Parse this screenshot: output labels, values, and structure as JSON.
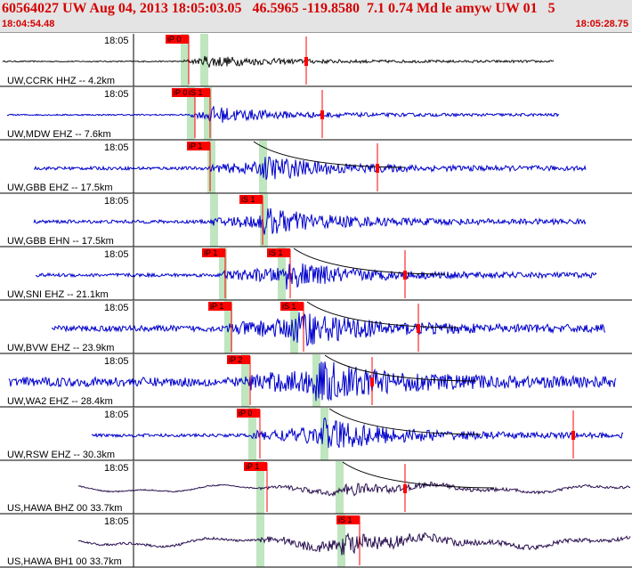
{
  "header": {
    "title": "60564027 UW Aug 04, 2013 18:05:03.05   46.5965 -119.8580  7.1 0.74 Md le amyw UW 01   5",
    "start_time": "18:04:54.48",
    "end_time": "18:05:28.75"
  },
  "time_tick_label": "18:05",
  "colors": {
    "header_text": "#d40000",
    "pick_flag": "#ff0000",
    "pick_window": "#bfe6bf",
    "trace_blue": "#0000cc",
    "trace_black": "#111111",
    "trace_purple": "#2a1050",
    "coda_curve": "#000000",
    "grid_line": "#000000"
  },
  "traces": [
    {
      "label": "UW,CCRK HHZ -- 4.2km",
      "color": "black",
      "amp": 0.5,
      "noise": 0.05,
      "xs": 3,
      "xe": 622,
      "picks": [
        {
          "text": "iP 0",
          "x": 212
        }
      ],
      "green": [
        207,
        229
      ],
      "coda": null,
      "tmark": 344
    },
    {
      "label": "UW,MDW EHZ -- 7.6km",
      "color": "blue",
      "amp": 0.6,
      "noise": 0.05,
      "xs": 8,
      "xe": 628,
      "picks": [
        {
          "text": "iP 0",
          "x": 219
        },
        {
          "text": "iS 1",
          "x": 236
        }
      ],
      "green": [
        214,
        233
      ],
      "coda": null,
      "tmark": 362
    },
    {
      "label": "UW,GBB EHZ -- 17.5km",
      "color": "blue",
      "amp": 0.7,
      "noise": 0.1,
      "xs": 38,
      "xe": 658,
      "picks": [
        {
          "text": "iP 1",
          "x": 236
        }
      ],
      "green": [
        237,
        295
      ],
      "coda": 285,
      "tmark": 424
    },
    {
      "label": "UW,GBB EHN -- 17.5km",
      "color": "blue",
      "amp": 0.75,
      "noise": 0.1,
      "xs": 38,
      "xe": 658,
      "picks": [
        {
          "text": "iS 1",
          "x": 295
        }
      ],
      "green": [
        240,
        296
      ],
      "coda": null,
      "tmark": null
    },
    {
      "label": "UW,SNI EHZ -- 21.1km",
      "color": "blue",
      "amp": 0.75,
      "noise": 0.1,
      "xs": 40,
      "xe": 670,
      "picks": [
        {
          "text": "iP 1",
          "x": 253
        },
        {
          "text": "iS 1",
          "x": 326
        }
      ],
      "green": [
        250,
        316
      ],
      "coda": 330,
      "tmark": 455
    },
    {
      "label": "UW,BVW EHZ -- 23.9km",
      "color": "blue",
      "amp": 0.85,
      "noise": 0.15,
      "xs": 58,
      "xe": 680,
      "picks": [
        {
          "text": "iP 1",
          "x": 260
        },
        {
          "text": "iS 1",
          "x": 341
        }
      ],
      "green": [
        256,
        330
      ],
      "coda": 345,
      "tmark": 470
    },
    {
      "label": "UW,WA2 EHZ -- 28.4km",
      "color": "blue",
      "amp": 0.9,
      "noise": 0.22,
      "xs": 10,
      "xe": 692,
      "picks": [
        {
          "text": "iP 2",
          "x": 281
        }
      ],
      "green": [
        275,
        355
      ],
      "coda": 365,
      "tmark": 418
    },
    {
      "label": "UW,RSW EHZ -- 30.3km",
      "color": "blue",
      "amp": 0.85,
      "noise": 0.08,
      "xs": 103,
      "xe": 700,
      "picks": [
        {
          "text": "iP 0",
          "x": 292
        }
      ],
      "green": [
        283,
        364
      ],
      "coda": 370,
      "tmark": 644
    },
    {
      "label": "US,HAWA BHZ 00 33.7km",
      "color": "purple",
      "amp": 0.55,
      "noise": 0.05,
      "xs": 88,
      "xe": 708,
      "picks": [
        {
          "text": "iP 1",
          "x": 300
        }
      ],
      "green": [
        292,
        381
      ],
      "coda": 385,
      "tmark": 455
    },
    {
      "label": "US,HAWA BH1 00 33.7km",
      "color": "purple",
      "amp": 0.7,
      "noise": 0.08,
      "xs": 88,
      "xe": 708,
      "picks": [
        {
          "text": "iS 1",
          "x": 404
        }
      ],
      "green": [
        292,
        383
      ],
      "coda": null,
      "tmark": null
    }
  ]
}
